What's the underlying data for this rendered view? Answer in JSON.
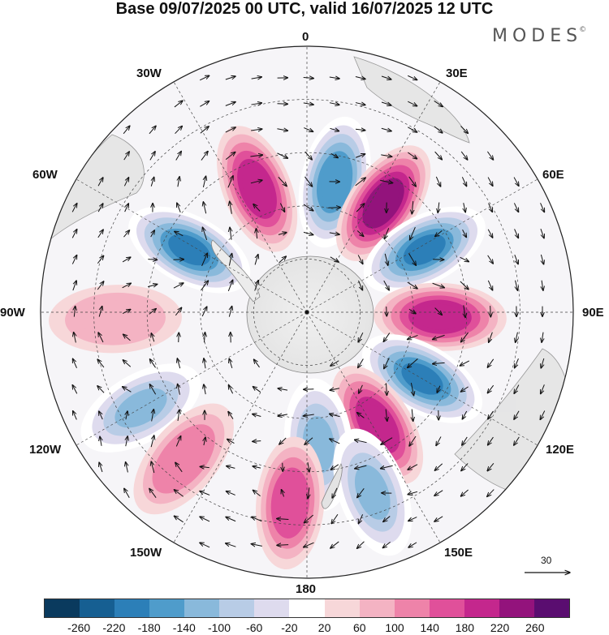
{
  "title": "Base 09/07/2025 00 UTC, valid 16/07/2025 12 UTC",
  "brand": {
    "name": "MODES",
    "mark": "©"
  },
  "longitude_labels": [
    "0",
    "30E",
    "60E",
    "90E",
    "120E",
    "150E",
    "180",
    "150W",
    "120W",
    "90W",
    "60W",
    "30W"
  ],
  "reference_vector": {
    "label": "30"
  },
  "colorbar": {
    "ticks": [
      "-260",
      "-220",
      "-180",
      "-140",
      "-100",
      "-60",
      "-20",
      "20",
      "60",
      "100",
      "140",
      "180",
      "220",
      "260"
    ],
    "colors": [
      "#0a3a5e",
      "#165f92",
      "#2c7fb8",
      "#4f9ccb",
      "#89b9db",
      "#b8cce6",
      "#dedbee",
      "#ffffff",
      "#f7d7d9",
      "#f4b3c3",
      "#ee83a9",
      "#e0509a",
      "#c4278d",
      "#93137c",
      "#5a0d70"
    ]
  },
  "map": {
    "projection": "south polar stereographic",
    "anomaly_centers": [
      {
        "lon": 12,
        "strength": -180
      },
      {
        "lon": -22,
        "strength": 200
      },
      {
        "lon": -62,
        "strength": -200
      },
      {
        "lon": 35,
        "strength": 220
      },
      {
        "lon": 62,
        "strength": -210
      },
      {
        "lon": 92,
        "strength": 190
      },
      {
        "lon": 120,
        "strength": -200
      },
      {
        "lon": 148,
        "strength": 180
      },
      {
        "lon": 175,
        "strength": -120
      },
      {
        "lon": -175,
        "strength": 140
      },
      {
        "lon": -120,
        "strength": -120
      },
      {
        "lon": -92,
        "strength": 90
      },
      {
        "lon": -140,
        "strength": 120
      },
      {
        "lon": 160,
        "strength": -110
      }
    ]
  }
}
